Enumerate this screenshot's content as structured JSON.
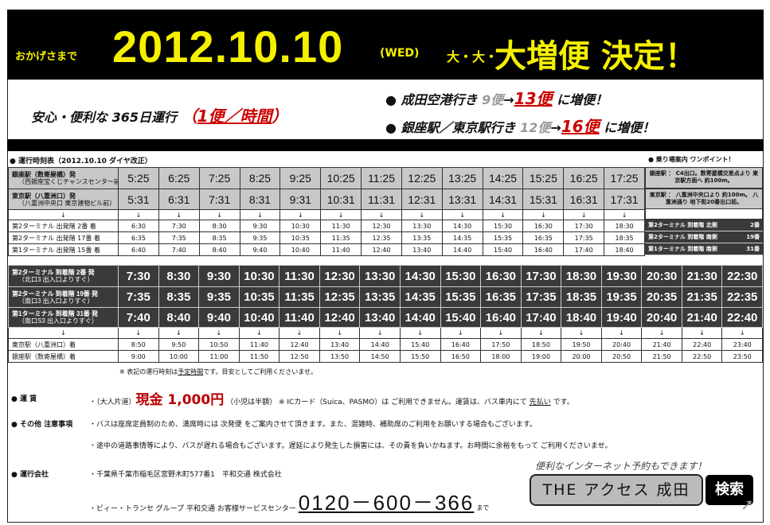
{
  "header": {
    "prefix": "おかげさまで",
    "date": "2012.10.10",
    "weekday": "(WED)",
    "dai": "大・大・",
    "headline": "大増便 決定！"
  },
  "band": {
    "left_text": "安心・便利な 365日運行",
    "left_paren_open": "（",
    "left_highlight": "1便／時間",
    "left_paren_close": "）",
    "line1": {
      "bullet": "●",
      "dest": "成田空港行き",
      "old": "9便",
      "arrow": "→",
      "new": "13便",
      "suffix": "に増便！"
    },
    "line2": {
      "bullet": "●",
      "dest": "銀座駅／東京駅行き",
      "old": "12便",
      "arrow": "→",
      "new": "16便",
      "suffix": "に増便！"
    }
  },
  "timetable_title": "● 運行時刻表（2012.10.10 ダイヤ改正）",
  "boarding_title": "● 乗り場案内 ワンポイント！",
  "outbound": {
    "rows": [
      {
        "label": "銀座駅（数寄屋橋）発",
        "sub": "（西銀座宝くじチャンスセンター前）",
        "times": [
          "5:25",
          "6:25",
          "7:25",
          "8:25",
          "9:25",
          "10:25",
          "11:25",
          "12:25",
          "13:25",
          "14:25",
          "15:25",
          "16:25",
          "17:25"
        ]
      },
      {
        "label": "東京駅（八重洲口）発",
        "sub": "（八重洲中央口 東京建物ビル前）",
        "times": [
          "5:31",
          "6:31",
          "7:31",
          "8:31",
          "9:31",
          "10:31",
          "11:31",
          "12:31",
          "13:31",
          "14:31",
          "15:31",
          "16:31",
          "17:31"
        ]
      }
    ],
    "arrow": "↓",
    "arrivals": [
      {
        "label": "第2ターミナル 出発階 2番 着",
        "times": [
          "6:30",
          "7:30",
          "8:30",
          "9:30",
          "10:30",
          "11:30",
          "12:30",
          "13:30",
          "14:30",
          "15:30",
          "16:30",
          "17:30",
          "18:30"
        ]
      },
      {
        "label": "第2ターミナル 出発階 17番 着",
        "times": [
          "6:35",
          "7:35",
          "8:35",
          "9:35",
          "10:35",
          "11:35",
          "12:35",
          "13:35",
          "14:35",
          "15:35",
          "16:35",
          "17:35",
          "18:35"
        ]
      },
      {
        "label": "第1ターミナル 出発階 15番 着",
        "times": [
          "6:40",
          "7:40",
          "8:40",
          "9:40",
          "10:40",
          "11:40",
          "12:40",
          "13:40",
          "14:40",
          "15:40",
          "16:40",
          "17:40",
          "18:40"
        ]
      }
    ]
  },
  "boarding": {
    "ginza": "銀座駅 ： C4出口。数寄屋橋交差点より 東京駅方面へ 約100m。",
    "tokyo": "東京駅 ： 八重洲中央口より 約100m。 八重洲通り 地下街20番出口前。",
    "stops": [
      {
        "name": "第2ターミナル 到着階 北側",
        "no": "2番"
      },
      {
        "name": "第2ターミナル 到着階 南側",
        "no": "19番"
      },
      {
        "name": "第1ターミナル 到着階 南側",
        "no": "31番"
      }
    ]
  },
  "inbound": {
    "rows": [
      {
        "label": "第2ターミナル 到着階 2番 発",
        "sub": "（北口3 出入口よりすぐ）",
        "times": [
          "7:30",
          "8:30",
          "9:30",
          "10:30",
          "11:30",
          "12:30",
          "13:30",
          "14:30",
          "15:30",
          "16:30",
          "17:30",
          "18:30",
          "19:30",
          "20:30",
          "21:30",
          "22:30"
        ]
      },
      {
        "label": "第2ターミナル 到着階 19番 発",
        "sub": "（南口3 出入口よりすぐ）",
        "times": [
          "7:35",
          "8:35",
          "9:35",
          "10:35",
          "11:35",
          "12:35",
          "13:35",
          "14:35",
          "15:35",
          "16:35",
          "17:35",
          "18:35",
          "19:35",
          "20:35",
          "21:35",
          "22:35"
        ]
      },
      {
        "label": "第1ターミナル 到着階 31番 発",
        "sub": "（南口S3 出入口よりすぐ）",
        "times": [
          "7:40",
          "8:40",
          "9:40",
          "10:40",
          "11:40",
          "12:40",
          "13:40",
          "14:40",
          "15:40",
          "16:40",
          "17:40",
          "18:40",
          "19:40",
          "20:40",
          "21:40",
          "22:40"
        ]
      }
    ],
    "arrow": "↓",
    "arrivals": [
      {
        "label": "東京駅（八重洲口）着",
        "times": [
          "8:50",
          "9:50",
          "10:50",
          "11:40",
          "12:40",
          "13:40",
          "14:40",
          "15:40",
          "16:40",
          "17:50",
          "18:50",
          "19:50",
          "20:40",
          "21:40",
          "22:40",
          "23:40"
        ]
      },
      {
        "label": "銀座駅（数寄屋橋）着",
        "times": [
          "9:00",
          "10:00",
          "11:00",
          "11:50",
          "12:50",
          "13:50",
          "14:50",
          "15:50",
          "16:50",
          "18:00",
          "19:00",
          "20:00",
          "20:50",
          "21:50",
          "22:50",
          "23:50"
        ]
      }
    ]
  },
  "note": {
    "pre": "※ 表記の運行時刻は",
    "u": "予定時間",
    "post": "です。目安としてご利用くださいませ。"
  },
  "fare": {
    "label": "● 運 賃",
    "pre": "・（大人片道）",
    "price": "現金 1,000円",
    "post": "（小児は半額） ※ ICカード（Suica、PASMO）は ご利用できません。運賃は、バス車内にて",
    "u": "先払い",
    "end": "です。"
  },
  "notes": {
    "label": "● その他 注意事項",
    "l1": "・バスは座席定員制のため、満席時には 次発便 をご案内させて頂きます。また、混雑時、補助席のご利用をお願いする場合もございます。",
    "l2": "・途中の道路事情等により、バスが遅れる場合もございます。遅延により発生した損害には、その責を負いかねます。お時間に余裕をもって ご利用くださいませ。"
  },
  "company": {
    "label": "● 運行会社",
    "address": "・千葉県千葉市稲毛区宮野木町577番1　平和交通 株式会社",
    "center": "・ビィー・トランセ グループ 平和交通 お客様サービスセンター",
    "phone": "0120－600－366",
    "made": "まで"
  },
  "search": {
    "caption": "便利なインターネット予約もできます！",
    "query": "THE アクセス 成田",
    "button": "検索"
  }
}
